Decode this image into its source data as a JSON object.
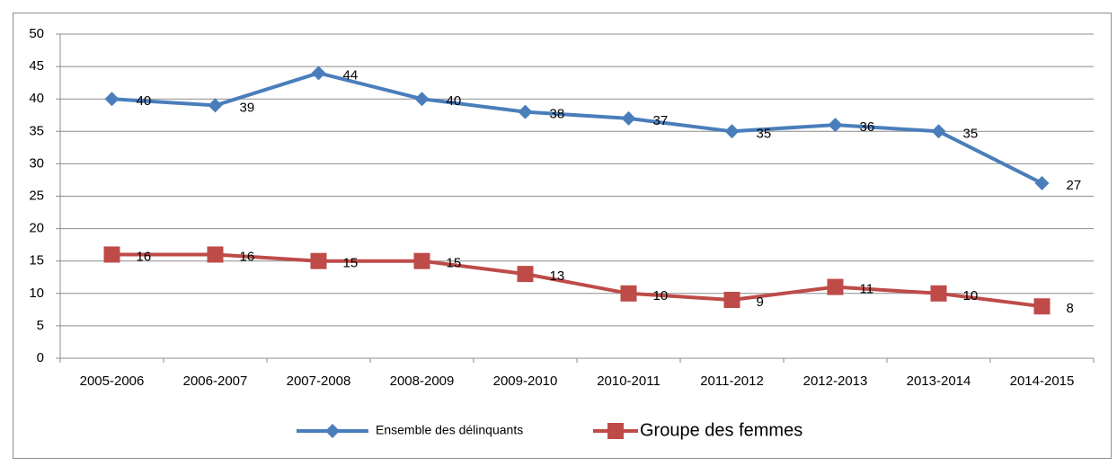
{
  "chart_data": {
    "type": "line",
    "categories": [
      "2005-2006",
      "2006-2007",
      "2007-2008",
      "2008-2009",
      "2009-2010",
      "2010-2011",
      "2011-2012",
      "2012-2013",
      "2013-2014",
      "2014-2015"
    ],
    "series": [
      {
        "name": "Ensemble des délinquants",
        "color": "#4a7ebb",
        "marker": "diamond",
        "values": [
          40,
          39,
          44,
          40,
          38,
          37,
          35,
          36,
          35,
          27
        ]
      },
      {
        "name": "Groupe des femmes",
        "color": "#be4b48",
        "marker": "square",
        "values": [
          16,
          16,
          15,
          15,
          13,
          10,
          9,
          11,
          10,
          8
        ]
      }
    ],
    "ylim": [
      0,
      50
    ],
    "yticks": [
      0,
      5,
      10,
      15,
      20,
      25,
      30,
      35,
      40,
      45,
      50
    ],
    "grid": true,
    "legend": "bottom"
  }
}
